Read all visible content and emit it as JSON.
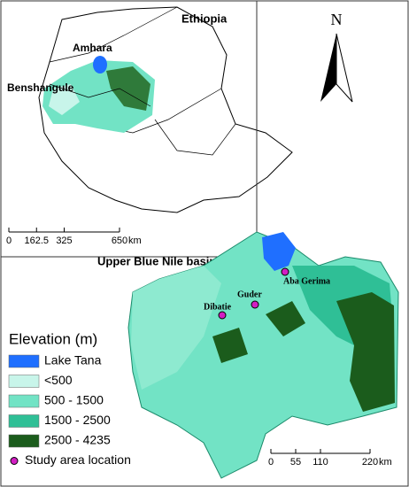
{
  "inset_map": {
    "country_label": "Ethiopia",
    "region_labels": [
      "Amhara",
      "Benshangule"
    ],
    "scale_bar": {
      "ticks": [
        0,
        162.5,
        325,
        650
      ],
      "unit": "km"
    }
  },
  "north_arrow": {
    "label": "N"
  },
  "main_map": {
    "title": "Upper Blue Nile basin",
    "sites": [
      "Aba Gerima",
      "Guder",
      "Dibatie"
    ],
    "scale_bar": {
      "ticks": [
        0,
        55,
        110,
        220
      ],
      "unit": "km"
    }
  },
  "legend": {
    "title": "Elevation (m)",
    "items": [
      {
        "label": "Lake Tana",
        "color": "#1f6fff",
        "shape": "rect"
      },
      {
        "label": "<500",
        "color": "#c8f5ea",
        "shape": "rect"
      },
      {
        "label": "500 - 1500",
        "color": "#72e3c5",
        "shape": "rect"
      },
      {
        "label": "1500 - 2500",
        "color": "#2fbf96",
        "shape": "rect"
      },
      {
        "label": "2500 - 4235",
        "color": "#1b5c1c",
        "shape": "rect"
      },
      {
        "label": "Study area location",
        "color": "#d21ec3",
        "shape": "circle"
      }
    ]
  }
}
